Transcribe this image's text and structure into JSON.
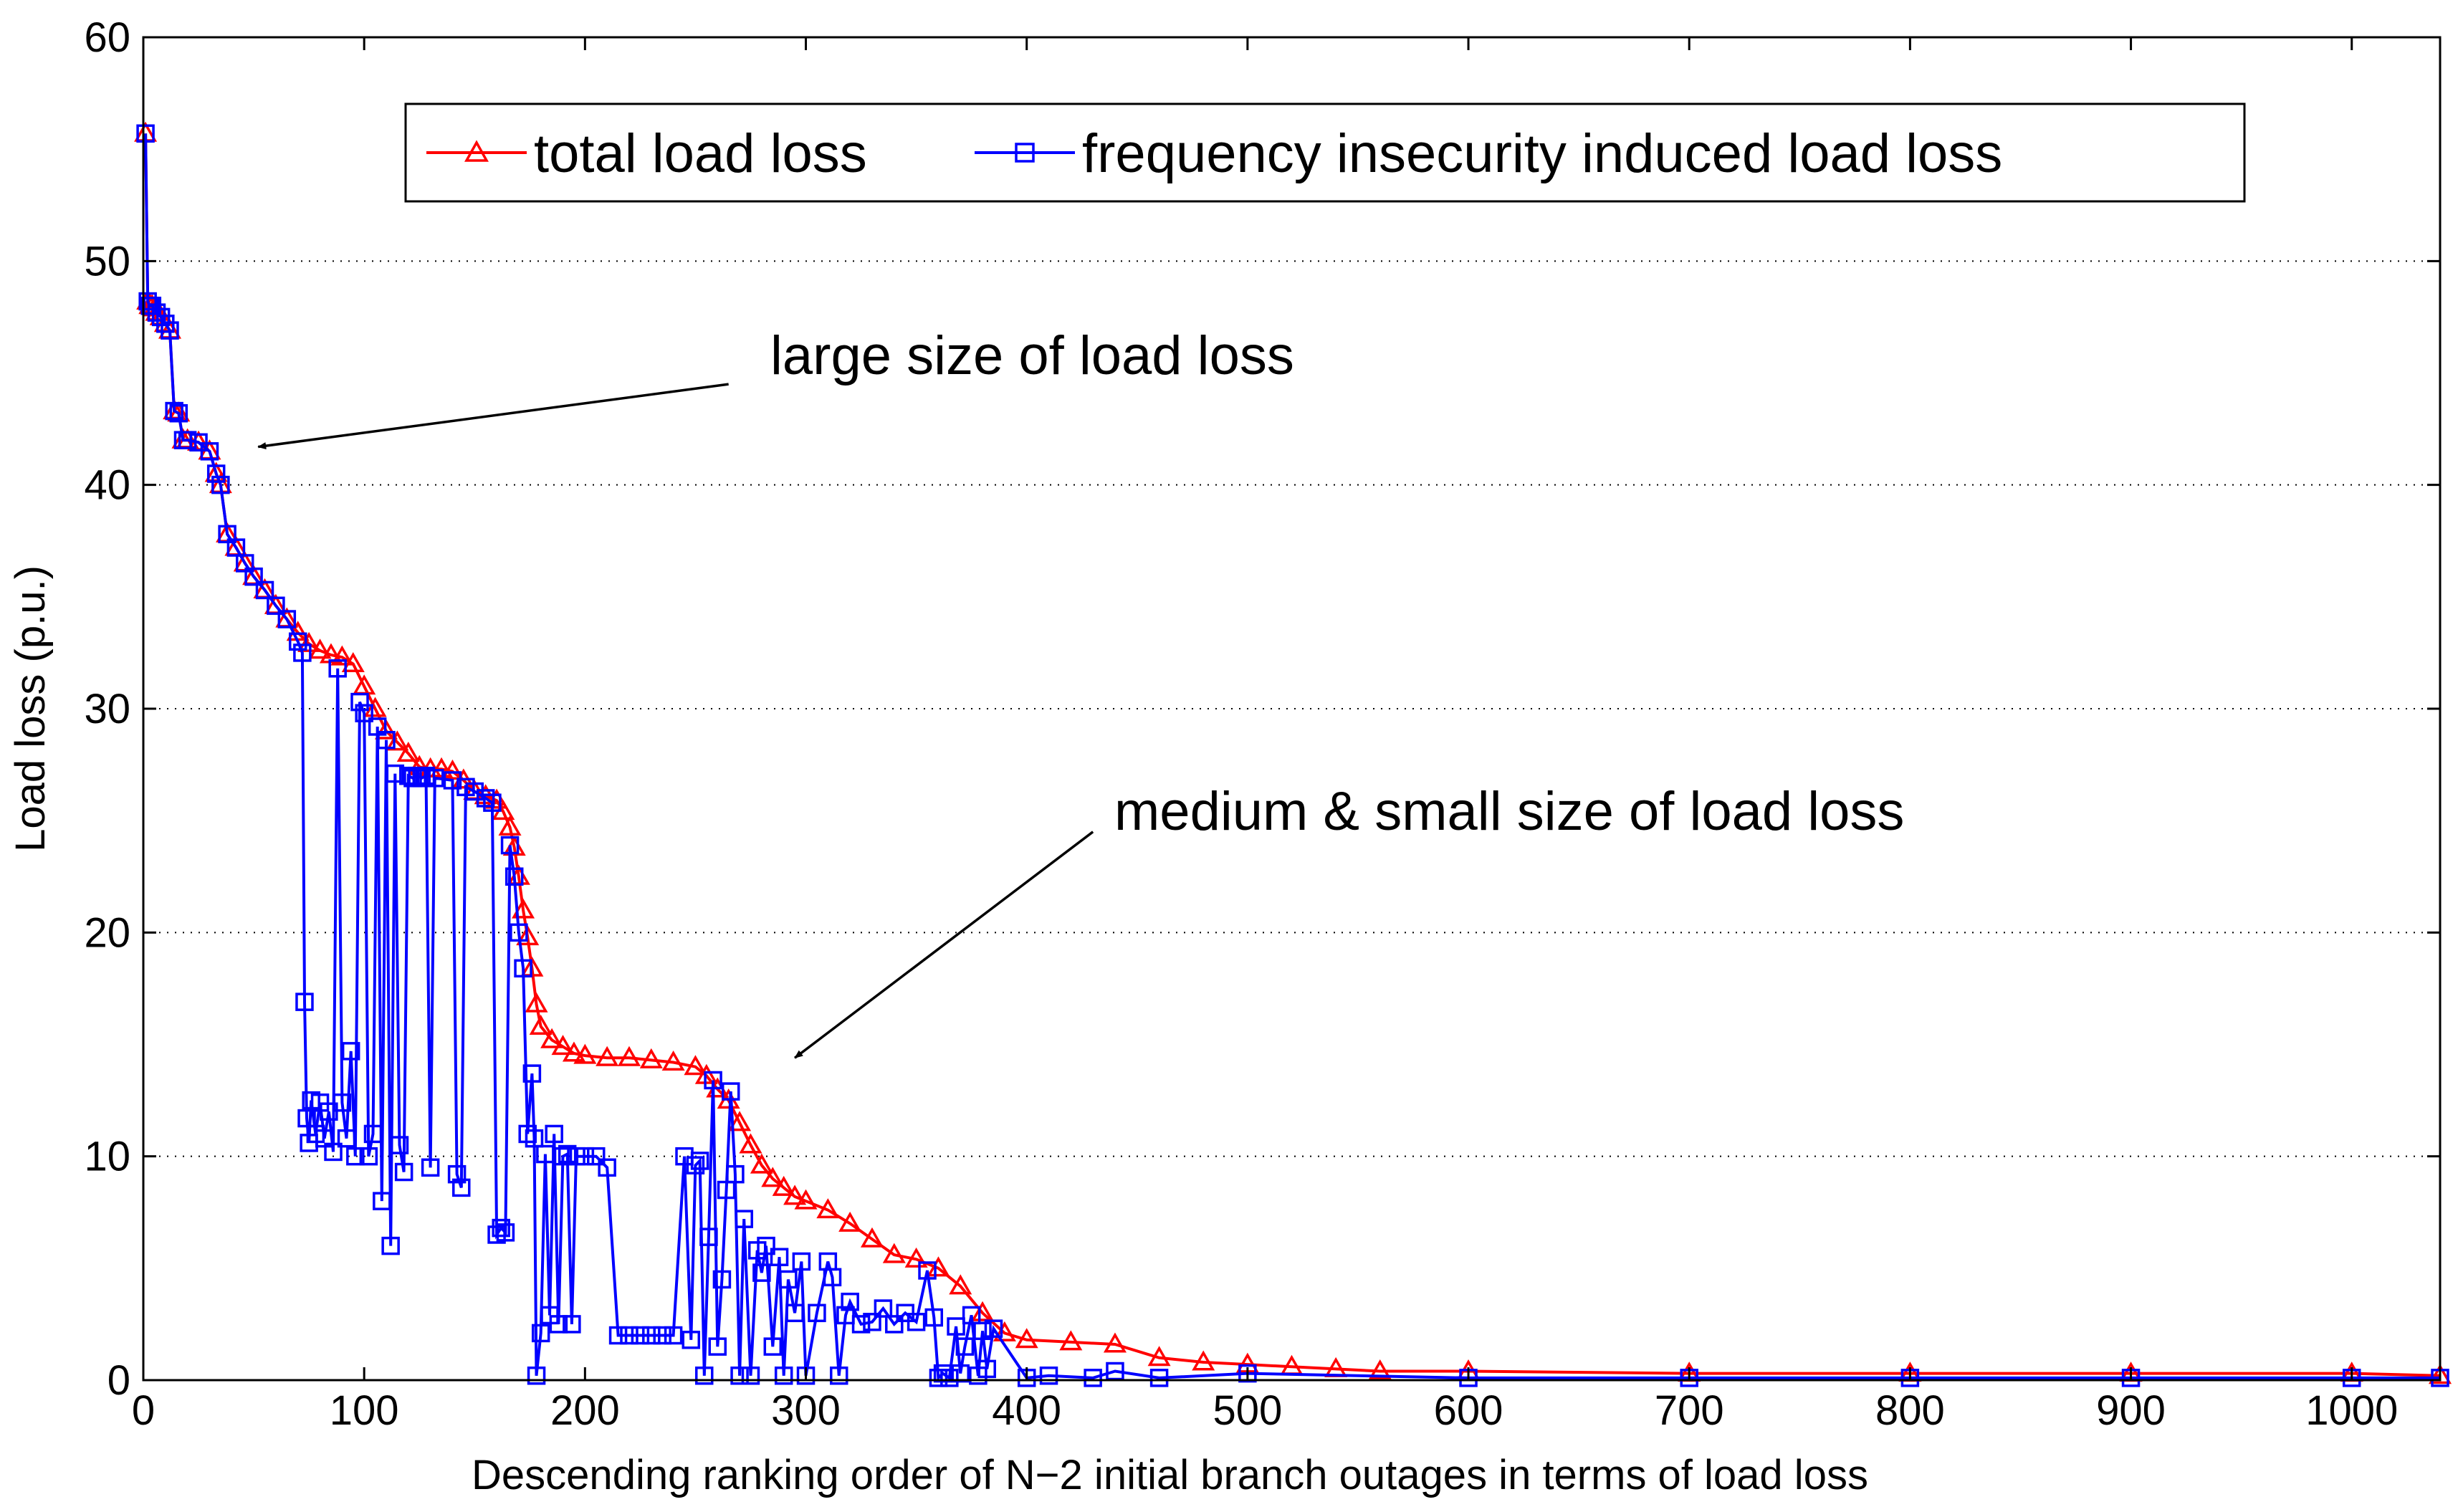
{
  "chart_data": {
    "type": "line",
    "title": "",
    "xlabel": "Descending ranking order of N−2 initial branch outages in terms of load loss",
    "ylabel": "Load loss (p.u.)",
    "xlim": [
      0,
      1040
    ],
    "ylim": [
      0,
      60
    ],
    "xticks": [
      "0",
      "100",
      "200",
      "300",
      "400",
      "500",
      "600",
      "700",
      "800",
      "900",
      "1000"
    ],
    "yticks": [
      "0",
      "10",
      "20",
      "30",
      "40",
      "50",
      "60"
    ],
    "grid": "horizontal dotted",
    "legend_position": "top",
    "colors": {
      "total": "#ff0000",
      "frequency": "#0000ff"
    },
    "annotations": [
      {
        "text": "large size of load loss",
        "arrow_from": [
          265,
          44.5
        ],
        "arrow_to": [
          52,
          41.7
        ]
      },
      {
        "text": "medium & small size of load loss",
        "arrow_from": [
          430,
          24.5
        ],
        "arrow_to": [
          295,
          14.4
        ]
      }
    ],
    "series": [
      {
        "name": "total load loss",
        "marker": "triangle",
        "x": [
          1,
          2,
          3,
          4,
          5,
          6,
          8,
          10,
          12,
          14,
          16,
          18,
          20,
          25,
          30,
          33,
          35,
          38,
          42,
          46,
          50,
          55,
          60,
          65,
          70,
          75,
          80,
          85,
          90,
          95,
          100,
          105,
          110,
          115,
          120,
          125,
          130,
          135,
          140,
          145,
          150,
          155,
          160,
          163,
          166,
          168,
          170,
          172,
          174,
          176,
          178,
          180,
          185,
          190,
          195,
          200,
          210,
          220,
          230,
          240,
          250,
          255,
          260,
          265,
          270,
          275,
          280,
          285,
          290,
          295,
          300,
          310,
          320,
          330,
          340,
          350,
          360,
          370,
          380,
          390,
          400,
          420,
          440,
          460,
          480,
          500,
          520,
          540,
          560,
          600,
          700,
          800,
          900,
          1000,
          1040
        ],
        "y": [
          55.7,
          48.2,
          48.0,
          48.0,
          47.9,
          47.7,
          47.5,
          47.2,
          46.9,
          43.3,
          43.2,
          42.0,
          42.0,
          41.9,
          41.5,
          40.5,
          40.0,
          37.8,
          37.2,
          36.5,
          35.9,
          35.3,
          34.6,
          34.0,
          33.4,
          32.9,
          32.6,
          32.4,
          32.3,
          32.0,
          31.0,
          30.0,
          29.0,
          28.5,
          28.0,
          27.4,
          27.3,
          27.3,
          27.2,
          26.8,
          26.3,
          26.1,
          25.9,
          25.4,
          24.7,
          23.8,
          22.5,
          21.0,
          19.8,
          18.4,
          16.8,
          15.8,
          15.2,
          14.9,
          14.6,
          14.5,
          14.4,
          14.4,
          14.3,
          14.2,
          14.0,
          13.6,
          13.0,
          12.5,
          11.5,
          10.5,
          9.6,
          9.0,
          8.6,
          8.2,
          8.0,
          7.6,
          7.0,
          6.3,
          5.6,
          5.4,
          5.0,
          4.2,
          3.0,
          2.1,
          1.8,
          1.7,
          1.6,
          1.0,
          0.8,
          0.7,
          0.6,
          0.5,
          0.4,
          0.4,
          0.3,
          0.3,
          0.3,
          0.3,
          0.2
        ]
      },
      {
        "name": "frequency insecurity induced load loss",
        "marker": "square",
        "x": [
          1,
          2,
          3,
          4,
          6,
          8,
          10,
          12,
          14,
          16,
          18,
          20,
          25,
          30,
          33,
          35,
          38,
          42,
          46,
          50,
          55,
          60,
          65,
          70,
          72,
          73,
          74,
          75,
          76,
          78,
          80,
          82,
          84,
          86,
          88,
          90,
          92,
          94,
          96,
          98,
          100,
          102,
          104,
          106,
          108,
          110,
          112,
          114,
          116,
          118,
          120,
          122,
          124,
          126,
          128,
          130,
          132,
          140,
          142,
          144,
          146,
          150,
          155,
          158,
          160,
          162,
          164,
          166,
          168,
          170,
          172,
          174,
          176,
          177,
          178,
          180,
          182,
          184,
          186,
          188,
          190,
          192,
          194,
          196,
          200,
          205,
          210,
          215,
          220,
          225,
          230,
          235,
          240,
          245,
          248,
          250,
          252,
          254,
          256,
          258,
          260,
          262,
          264,
          266,
          268,
          270,
          272,
          275,
          278,
          280,
          282,
          285,
          288,
          290,
          292,
          295,
          298,
          300,
          305,
          310,
          312,
          315,
          318,
          320,
          325,
          330,
          335,
          340,
          345,
          350,
          355,
          358,
          360,
          362,
          365,
          368,
          370,
          372,
          375,
          378,
          380,
          382,
          385,
          400,
          410,
          430,
          440,
          460,
          500,
          600,
          700,
          800,
          900,
          1000,
          1040
        ],
        "y": [
          55.7,
          48.2,
          48.0,
          48.0,
          47.7,
          47.5,
          47.2,
          46.9,
          43.3,
          43.2,
          42.0,
          42.0,
          41.9,
          41.5,
          40.5,
          40.0,
          37.8,
          37.2,
          36.5,
          35.9,
          35.3,
          34.6,
          34.0,
          33.0,
          32.5,
          16.9,
          11.7,
          10.6,
          12.5,
          11.0,
          12.4,
          10.8,
          12.0,
          10.2,
          31.8,
          12.4,
          10.8,
          14.7,
          10.0,
          30.3,
          29.8,
          10.0,
          11.0,
          29.2,
          8.0,
          28.6,
          6.0,
          27.1,
          10.5,
          9.3,
          27.0,
          26.9,
          27.0,
          26.9,
          27.0,
          9.5,
          26.9,
          26.8,
          9.2,
          8.6,
          26.5,
          26.3,
          26.0,
          25.8,
          6.5,
          6.8,
          6.6,
          23.9,
          22.5,
          20.0,
          18.4,
          11.0,
          13.7,
          10.8,
          0.2,
          2.1,
          10.1,
          2.9,
          11.0,
          2.5,
          10.0,
          10.1,
          2.5,
          10.0,
          10.0,
          10.0,
          9.5,
          2.0,
          2.0,
          2.0,
          2.0,
          2.0,
          2.0,
          10.0,
          1.8,
          9.6,
          9.8,
          0.2,
          6.4,
          13.4,
          1.5,
          4.5,
          8.5,
          12.9,
          9.2,
          0.2,
          7.2,
          0.2,
          5.8,
          4.8,
          6.0,
          1.5,
          5.5,
          0.2,
          4.5,
          3.0,
          5.3,
          0.2,
          3.0,
          5.3,
          4.6,
          0.2,
          2.9,
          3.5,
          2.5,
          2.6,
          3.2,
          2.5,
          3.0,
          2.6,
          4.9,
          2.8,
          0.1,
          0.3,
          0.1,
          2.4,
          0.3,
          1.5,
          2.9,
          0.2,
          2.2,
          0.5,
          2.3,
          0.1,
          0.2,
          0.1,
          0.4,
          0.1,
          0.3,
          0.1,
          0.1,
          0.1,
          0.1,
          0.1,
          0.1
        ]
      }
    ]
  }
}
